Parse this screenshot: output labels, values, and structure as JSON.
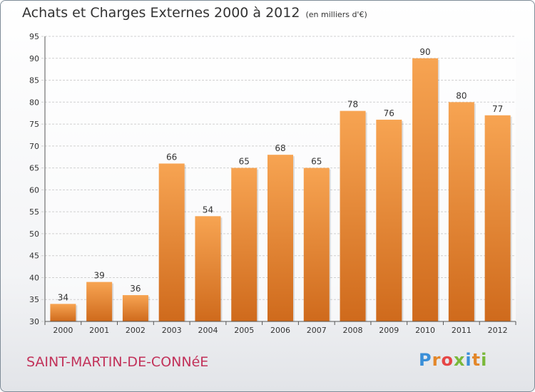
{
  "header": {
    "title": "Achats et Charges Externes 2000 à 2012",
    "unit": "(en milliers d'€)"
  },
  "footer": {
    "town": "SAINT-MARTIN-DE-CONNéE",
    "logo_letters": [
      "P",
      "r",
      "o",
      "x",
      "i",
      "t",
      "i"
    ],
    "logo_colors": [
      "#3a8fd8",
      "#e3872a",
      "#e64646",
      "#7ab83a",
      "#3a8fd8",
      "#e3872a",
      "#7ab83a"
    ]
  },
  "colors": {
    "bar_light": "#f7a452",
    "bar_dark": "#cf6a1c",
    "accent_text": "#c2325a"
  },
  "chart_data": {
    "type": "bar",
    "categories": [
      "2000",
      "2001",
      "2002",
      "2003",
      "2004",
      "2005",
      "2006",
      "2007",
      "2008",
      "2009",
      "2010",
      "2011",
      "2012"
    ],
    "values": [
      34,
      39,
      36,
      66,
      54,
      65,
      68,
      65,
      78,
      76,
      90,
      80,
      77
    ],
    "ylim": [
      30,
      95
    ],
    "yticks": [
      30,
      35,
      40,
      45,
      50,
      55,
      60,
      65,
      70,
      75,
      80,
      85,
      90,
      95
    ],
    "grid": true
  }
}
